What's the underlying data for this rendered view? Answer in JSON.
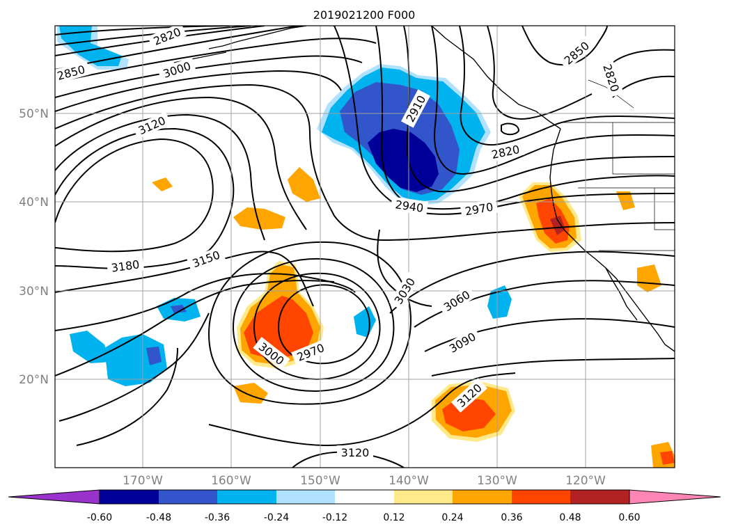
{
  "title": "2019021200 F000",
  "lat_labels": [
    "50°N",
    "40°N",
    "30°N",
    "20°N"
  ],
  "lon_labels": [
    "170°W",
    "160°W",
    "150°W",
    "140°W",
    "130°W",
    "120°W"
  ],
  "contour_labels": [
    "2820",
    "2850",
    "3000",
    "3120",
    "2910",
    "2850",
    "2820",
    "2820",
    "2940",
    "2970",
    "3180",
    "3150",
    "3030",
    "3060",
    "3090",
    "3000",
    "2970",
    "3120",
    "3120"
  ],
  "colorbar": {
    "ticks": [
      "-0.60",
      "-0.48",
      "-0.36",
      "-0.24",
      "-0.12",
      "0.12",
      "0.24",
      "0.36",
      "0.48",
      "0.60"
    ],
    "colors": [
      "#9933cc",
      "#000099",
      "#3355cc",
      "#00b2ee",
      "#b0e2ff",
      "#ffffff",
      "#ffe98a",
      "#ffa500",
      "#ff4500",
      "#b22222",
      "#ff86b4"
    ]
  }
}
